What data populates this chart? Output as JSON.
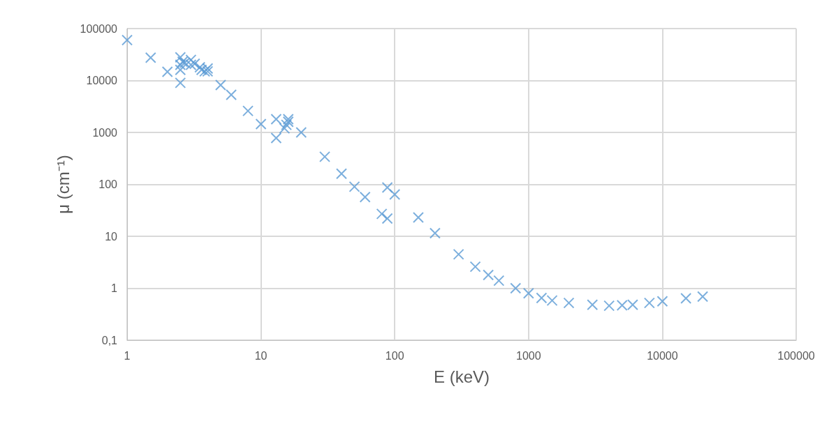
{
  "chart_data": {
    "type": "scatter",
    "xlabel": "E (keV)",
    "ylabel": "μ (cm⁻¹)",
    "x": [
      1,
      1.5,
      2,
      2.5,
      2.5,
      2.5,
      2.5,
      2.6,
      2.7,
      3,
      3,
      3.2,
      3.5,
      3.6,
      3.8,
      4,
      4,
      5,
      6,
      8,
      10,
      13,
      13,
      15,
      15.5,
      16,
      16,
      20,
      30,
      40,
      50,
      60,
      80,
      88,
      88,
      100,
      150,
      200,
      300,
      400,
      500,
      600,
      800,
      1000,
      1250,
      1500,
      2000,
      3000,
      4000,
      5000,
      6000,
      8000,
      10000,
      15000,
      20000
    ],
    "series": [
      {
        "color": "#5b9bd5",
        "values": [
          60000,
          27500,
          14700,
          9000,
          16000,
          20000,
          28000,
          23000,
          22000,
          25000,
          20000,
          21000,
          18000,
          16000,
          15000,
          17000,
          15000,
          8200,
          5300,
          2600,
          1450,
          1800,
          780,
          1200,
          1400,
          1600,
          1800,
          1000,
          340,
          160,
          90,
          57,
          27,
          22,
          87,
          64,
          23,
          11.5,
          4.5,
          2.6,
          1.8,
          1.4,
          1.0,
          0.8,
          0.65,
          0.58,
          0.52,
          0.48,
          0.46,
          0.47,
          0.48,
          0.52,
          0.56,
          0.64,
          0.69
        ]
      }
    ],
    "xlim": [
      1,
      100000
    ],
    "xticks": [
      1,
      10,
      100,
      1000,
      10000,
      100000
    ],
    "ylim": [
      0.1,
      100000
    ],
    "yticks": [
      {
        "value": 0.1,
        "label": "0,1"
      },
      1,
      10,
      100,
      1000,
      10000,
      100000
    ],
    "log": "xy",
    "grid": true,
    "marker": "cross"
  }
}
